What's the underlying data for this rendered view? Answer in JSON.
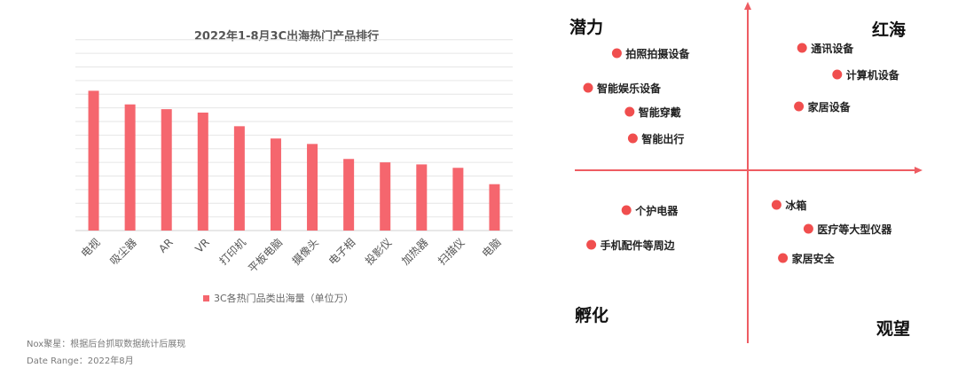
{
  "chart_data": [
    {
      "type": "bar",
      "title": "2022年1-8月3C出海热门产品排行",
      "categories": [
        "电视",
        "吸尘器",
        "AR",
        "VR",
        "打印机",
        "平板电脑",
        "摄像头",
        "电子相",
        "投影仪",
        "加热器",
        "扫描仪",
        "电脑"
      ],
      "series": [
        {
          "name": "3C各热门品类出海量（单位万）",
          "values": [
            205,
            185,
            178,
            173,
            153,
            135,
            127,
            105,
            100,
            97,
            92,
            68
          ]
        }
      ],
      "ylim": [
        0,
        290
      ],
      "grid": true,
      "legend": "bottom",
      "color": "#f5666e"
    },
    {
      "type": "scatter",
      "quadrant_labels": {
        "top_left": "潜力",
        "top_right": "红海",
        "bottom_left": "孵化",
        "bottom_right": "观望"
      },
      "points": [
        {
          "label": "拍照拍摄设备",
          "x": -4.1,
          "y": 4.4
        },
        {
          "label": "智能娱乐设备",
          "x": -5.0,
          "y": 3.1
        },
        {
          "label": "智能穿戴",
          "x": -3.7,
          "y": 2.2
        },
        {
          "label": "智能出行",
          "x": -3.6,
          "y": 1.2
        },
        {
          "label": "通讯设备",
          "x": 1.7,
          "y": 4.6
        },
        {
          "label": "计算机设备",
          "x": 2.8,
          "y": 3.6
        },
        {
          "label": "家居设备",
          "x": 1.6,
          "y": 2.4
        },
        {
          "label": "个护电器",
          "x": -3.8,
          "y": -1.5
        },
        {
          "label": "手机配件等周边",
          "x": -4.9,
          "y": -2.8
        },
        {
          "label": "冰箱",
          "x": 0.9,
          "y": -1.3
        },
        {
          "label": "医疗等大型仪器",
          "x": 1.9,
          "y": -2.2
        },
        {
          "label": "家居安全",
          "x": 1.1,
          "y": -3.3
        }
      ],
      "axis_color": "#ee5c62",
      "point_color": "#f04e4e"
    }
  ],
  "notes": {
    "source": "Nox聚星：根据后台抓取数据统计后展现",
    "range": "Date Range：2022年8月"
  }
}
